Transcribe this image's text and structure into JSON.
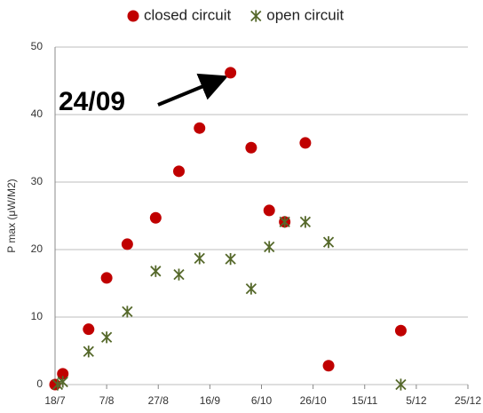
{
  "chart_data": {
    "type": "scatter",
    "y_label": "P max (μW/M2)",
    "annotation": "24/09",
    "xlim": [
      199,
      359
    ],
    "xticks": [
      {
        "value": 199,
        "label": "18/7"
      },
      {
        "value": 219,
        "label": "7/8"
      },
      {
        "value": 239,
        "label": "27/8"
      },
      {
        "value": 259,
        "label": "16/9"
      },
      {
        "value": 279,
        "label": "6/10"
      },
      {
        "value": 299,
        "label": "26/10"
      },
      {
        "value": 319,
        "label": "15/11"
      },
      {
        "value": 339,
        "label": "5/12"
      },
      {
        "value": 359,
        "label": "25/12"
      }
    ],
    "ylim": [
      0,
      50
    ],
    "yticks": [
      0,
      10,
      20,
      30,
      40,
      50
    ],
    "grid": true,
    "legend": "top",
    "series": [
      {
        "name": "closed circuit",
        "color": "#c00000",
        "marker": "circle",
        "x": [
          199,
          202,
          212,
          219,
          227,
          238,
          247,
          255,
          267,
          275,
          282,
          288,
          296,
          305,
          333
        ],
        "values": [
          0,
          1.6,
          8.2,
          15.8,
          20.8,
          24.7,
          31.6,
          38,
          46.2,
          35.1,
          25.8,
          24.1,
          35.8,
          2.8,
          8
        ]
      },
      {
        "name": "open circuit",
        "color": "#55682a",
        "marker": "star",
        "x": [
          200,
          202,
          212,
          219,
          227,
          238,
          247,
          255,
          267,
          275,
          282,
          288,
          296,
          305,
          333
        ],
        "values": [
          0,
          0.4,
          4.9,
          7,
          10.8,
          16.8,
          16.3,
          18.7,
          18.6,
          14.2,
          20.4,
          24.1,
          24.1,
          21.1,
          0
        ]
      }
    ]
  }
}
